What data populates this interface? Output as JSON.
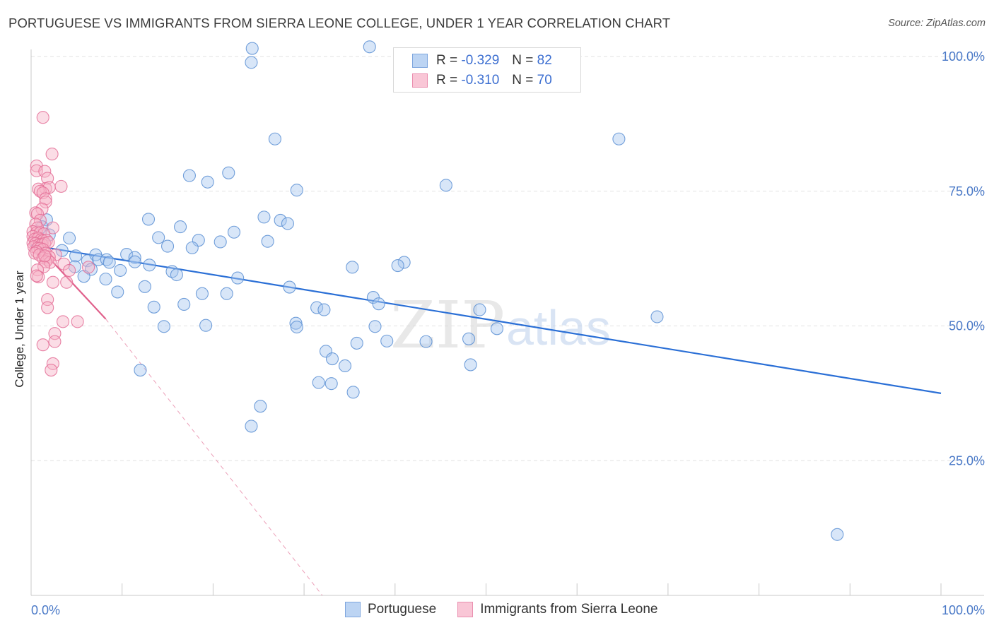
{
  "title": "PORTUGUESE VS IMMIGRANTS FROM SIERRA LEONE COLLEGE, UNDER 1 YEAR CORRELATION CHART",
  "source": "Source: ZipAtlas.com",
  "watermark": {
    "zip": "ZIP",
    "atlas": "atlas"
  },
  "legend": {
    "r_label": "R =",
    "n_label": "N =",
    "series": [
      {
        "name": "Portuguese",
        "r": "-0.329",
        "n": "82"
      },
      {
        "name": "Immigrants from Sierra Leone",
        "r": "-0.310",
        "n": "70"
      }
    ]
  },
  "colors": {
    "blue_fill": "#a9c8f0",
    "blue_stroke": "#5b8fd4",
    "blue_line": "#2a6fd6",
    "pink_fill": "#f6b3c8",
    "pink_stroke": "#e46f96",
    "pink_line": "#e0608b",
    "tick_text": "#4a79c7",
    "grid": "#e2e2e2"
  },
  "chart_data": {
    "type": "scatter",
    "title": "PORTUGUESE VS IMMIGRANTS FROM SIERRA LEONE COLLEGE, UNDER 1 YEAR CORRELATION CHART",
    "xlabel": "",
    "ylabel": "College, Under 1 year",
    "xlim": [
      0,
      100
    ],
    "ylim": [
      0,
      103
    ],
    "x_tick_labels": [
      "0.0%",
      "100.0%"
    ],
    "y_ticks": [
      {
        "value": 25,
        "label": "25.0%"
      },
      {
        "value": 50,
        "label": "50.0%"
      },
      {
        "value": 75,
        "label": "75.0%"
      },
      {
        "value": 100,
        "label": "100.0%"
      }
    ],
    "grid": true,
    "series": [
      {
        "name": "Portuguese",
        "color": "blue",
        "points": [
          [
            24.3,
            101.5
          ],
          [
            37.2,
            101.8
          ],
          [
            24.2,
            98.9
          ],
          [
            26.8,
            84.7
          ],
          [
            64.6,
            84.7
          ],
          [
            17.4,
            77.9
          ],
          [
            21.7,
            78.4
          ],
          [
            19.4,
            76.7
          ],
          [
            29.2,
            75.2
          ],
          [
            45.6,
            76.1
          ],
          [
            1.7,
            69.7
          ],
          [
            12.9,
            69.8
          ],
          [
            25.6,
            70.2
          ],
          [
            27.4,
            69.6
          ],
          [
            16.4,
            68.4
          ],
          [
            22.3,
            67.4
          ],
          [
            1.2,
            68.4
          ],
          [
            2.0,
            66.9
          ],
          [
            4.2,
            66.3
          ],
          [
            14.0,
            66.4
          ],
          [
            18.4,
            65.9
          ],
          [
            20.8,
            65.6
          ],
          [
            26.0,
            65.7
          ],
          [
            15.0,
            64.8
          ],
          [
            17.7,
            64.5
          ],
          [
            3.4,
            64.0
          ],
          [
            4.9,
            63.0
          ],
          [
            6.2,
            62.1
          ],
          [
            7.1,
            63.2
          ],
          [
            10.5,
            63.3
          ],
          [
            11.4,
            62.7
          ],
          [
            7.4,
            62.3
          ],
          [
            8.3,
            62.3
          ],
          [
            8.6,
            61.8
          ],
          [
            13.0,
            61.3
          ],
          [
            4.8,
            61.0
          ],
          [
            6.6,
            60.5
          ],
          [
            9.8,
            60.3
          ],
          [
            15.5,
            60.1
          ],
          [
            16.0,
            59.5
          ],
          [
            22.7,
            58.9
          ],
          [
            35.3,
            60.9
          ],
          [
            41.0,
            61.8
          ],
          [
            11.4,
            61.9
          ],
          [
            5.8,
            59.2
          ],
          [
            8.2,
            58.7
          ],
          [
            12.5,
            57.3
          ],
          [
            28.4,
            57.2
          ],
          [
            9.5,
            56.3
          ],
          [
            18.8,
            56.0
          ],
          [
            21.5,
            56.0
          ],
          [
            37.6,
            55.3
          ],
          [
            13.5,
            53.5
          ],
          [
            16.8,
            54.0
          ],
          [
            31.4,
            53.4
          ],
          [
            32.2,
            53.0
          ],
          [
            38.2,
            54.1
          ],
          [
            68.8,
            51.7
          ],
          [
            14.6,
            49.9
          ],
          [
            19.2,
            50.1
          ],
          [
            29.1,
            50.5
          ],
          [
            29.2,
            49.8
          ],
          [
            37.8,
            49.9
          ],
          [
            51.2,
            49.5
          ],
          [
            48.1,
            47.6
          ],
          [
            35.8,
            46.8
          ],
          [
            39.1,
            47.2
          ],
          [
            43.4,
            47.1
          ],
          [
            32.4,
            45.3
          ],
          [
            33.1,
            43.9
          ],
          [
            12.0,
            41.8
          ],
          [
            34.5,
            42.6
          ],
          [
            48.3,
            42.8
          ],
          [
            33.0,
            39.3
          ],
          [
            31.6,
            39.5
          ],
          [
            35.4,
            37.7
          ],
          [
            25.2,
            35.1
          ],
          [
            24.2,
            31.4
          ],
          [
            88.6,
            11.3
          ],
          [
            49.3,
            53.0
          ],
          [
            40.3,
            61.2
          ],
          [
            28.2,
            69.0
          ]
        ]
      },
      {
        "name": "Immigrants from Sierra Leone",
        "color": "pink",
        "points": [
          [
            1.3,
            88.7
          ],
          [
            2.3,
            81.9
          ],
          [
            0.6,
            79.7
          ],
          [
            0.6,
            78.8
          ],
          [
            1.5,
            78.7
          ],
          [
            1.8,
            77.4
          ],
          [
            3.3,
            75.9
          ],
          [
            1.6,
            75.5
          ],
          [
            2.0,
            75.7
          ],
          [
            0.8,
            75.4
          ],
          [
            1.0,
            75.0
          ],
          [
            1.3,
            74.7
          ],
          [
            1.6,
            73.6
          ],
          [
            1.6,
            73.0
          ],
          [
            1.2,
            71.7
          ],
          [
            0.5,
            71.0
          ],
          [
            0.7,
            70.8
          ],
          [
            1.0,
            69.6
          ],
          [
            0.5,
            68.9
          ],
          [
            0.7,
            68.2
          ],
          [
            2.4,
            68.2
          ],
          [
            0.2,
            67.5
          ],
          [
            0.6,
            67.3
          ],
          [
            1.0,
            67.3
          ],
          [
            1.4,
            67.1
          ],
          [
            0.2,
            66.6
          ],
          [
            0.4,
            66.1
          ],
          [
            0.8,
            66.3
          ],
          [
            1.1,
            66.0
          ],
          [
            1.3,
            65.8
          ],
          [
            1.7,
            65.9
          ],
          [
            0.2,
            65.4
          ],
          [
            0.5,
            65.3
          ],
          [
            0.9,
            65.1
          ],
          [
            1.2,
            65.1
          ],
          [
            1.5,
            65.3
          ],
          [
            1.9,
            65.5
          ],
          [
            0.3,
            64.7
          ],
          [
            0.7,
            64.4
          ],
          [
            1.0,
            64.4
          ],
          [
            1.3,
            64.2
          ],
          [
            0.6,
            63.8
          ],
          [
            1.6,
            63.5
          ],
          [
            2.7,
            63.2
          ],
          [
            0.4,
            63.5
          ],
          [
            0.9,
            63.2
          ],
          [
            1.3,
            62.6
          ],
          [
            2.0,
            62.8
          ],
          [
            1.8,
            62.3
          ],
          [
            1.6,
            61.9
          ],
          [
            2.1,
            61.8
          ],
          [
            3.6,
            61.5
          ],
          [
            1.4,
            61.0
          ],
          [
            6.3,
            60.9
          ],
          [
            0.7,
            60.4
          ],
          [
            4.2,
            60.3
          ],
          [
            0.8,
            59.1
          ],
          [
            0.6,
            59.3
          ],
          [
            3.9,
            58.1
          ],
          [
            2.4,
            58.1
          ],
          [
            1.8,
            54.9
          ],
          [
            1.8,
            53.4
          ],
          [
            3.5,
            50.8
          ],
          [
            5.1,
            50.8
          ],
          [
            2.6,
            48.6
          ],
          [
            2.6,
            47.1
          ],
          [
            1.3,
            46.5
          ],
          [
            2.4,
            43.0
          ],
          [
            2.2,
            41.8
          ],
          [
            1.5,
            63.0
          ]
        ]
      }
    ],
    "trend_lines": [
      {
        "series": "Portuguese",
        "x": [
          0,
          100
        ],
        "y": [
          65.0,
          37.5
        ],
        "style": "solid"
      },
      {
        "series": "Immigrants from Sierra Leone",
        "x": [
          0,
          8.2
        ],
        "y": [
          66.2,
          51.3
        ],
        "style": "solid"
      },
      {
        "series": "Immigrants from Sierra Leone",
        "x": [
          8.2,
          32.0
        ],
        "y": [
          51.3,
          0.0
        ],
        "style": "dashed"
      }
    ]
  }
}
